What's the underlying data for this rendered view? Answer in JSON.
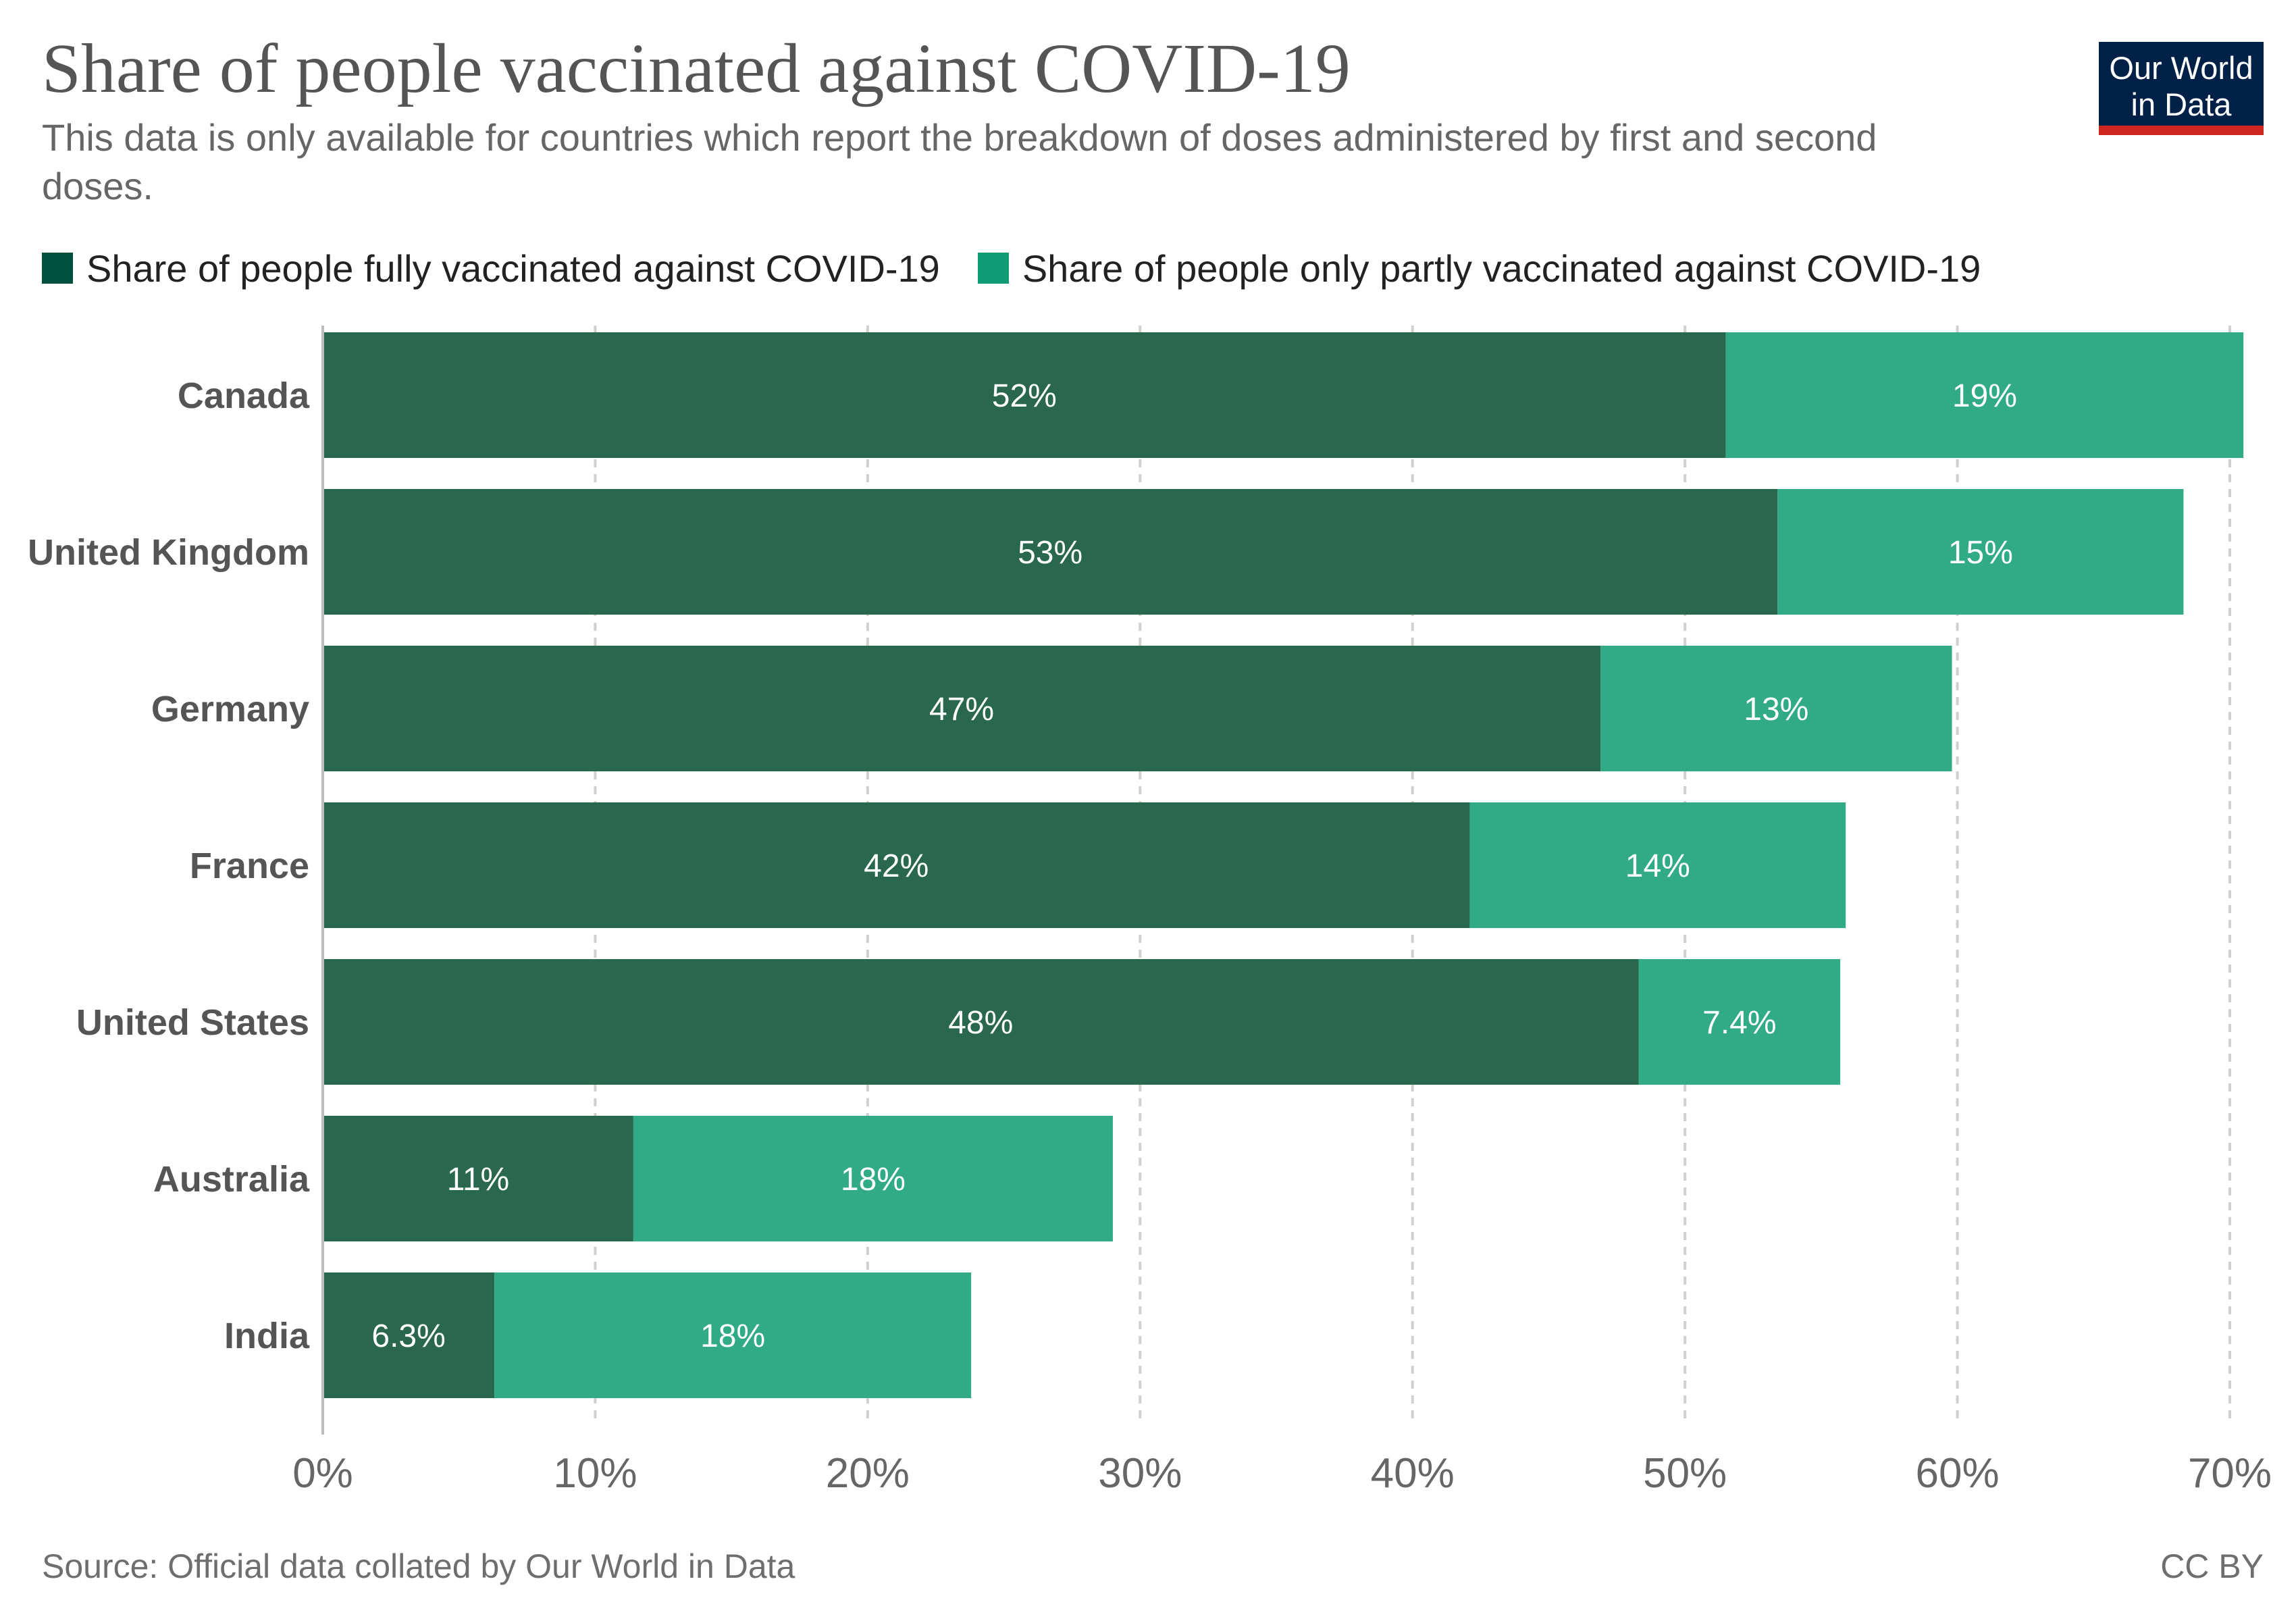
{
  "title": "Share of people vaccinated against COVID-19",
  "subtitle": "This data is only available for countries which report the breakdown of doses administered by first and second doses.",
  "logo": {
    "line1": "Our World",
    "line2": "in Data"
  },
  "source": "Source: Official data collated by Our World in Data",
  "license": "CC BY",
  "colors": {
    "fully": "#29684f",
    "partly": "#31ab86",
    "legend_fully": "#00513b",
    "legend_partly": "#109c72",
    "grid": "#d0d0d0",
    "label": "#555555"
  },
  "chart_data": {
    "type": "bar",
    "orientation": "horizontal",
    "stacked": true,
    "title": "Share of people vaccinated against COVID-19",
    "categories": [
      "Canada",
      "United Kingdom",
      "Germany",
      "France",
      "United States",
      "Australia",
      "India"
    ],
    "series": [
      {
        "name": "Share of people fully vaccinated against COVID-19",
        "values": [
          51.5,
          53.4,
          46.9,
          42.1,
          48.3,
          11.4,
          6.3
        ],
        "labels": [
          "52%",
          "53%",
          "47%",
          "42%",
          "48%",
          "11%",
          "6.3%"
        ]
      },
      {
        "name": "Share of people only partly vaccinated against COVID-19",
        "values": [
          19.0,
          14.9,
          12.9,
          13.8,
          7.4,
          17.6,
          17.5
        ],
        "labels": [
          "19%",
          "15%",
          "13%",
          "14%",
          "7.4%",
          "18%",
          "18%"
        ]
      }
    ],
    "xlim": [
      0,
      70
    ],
    "xticks": [
      0,
      10,
      20,
      30,
      40,
      50,
      60,
      70
    ],
    "xtick_labels": [
      "0%",
      "10%",
      "20%",
      "30%",
      "40%",
      "50%",
      "60%",
      "70%"
    ],
    "grid": "vertical dashed",
    "legend": "top-left",
    "xlabel": "",
    "ylabel": ""
  }
}
